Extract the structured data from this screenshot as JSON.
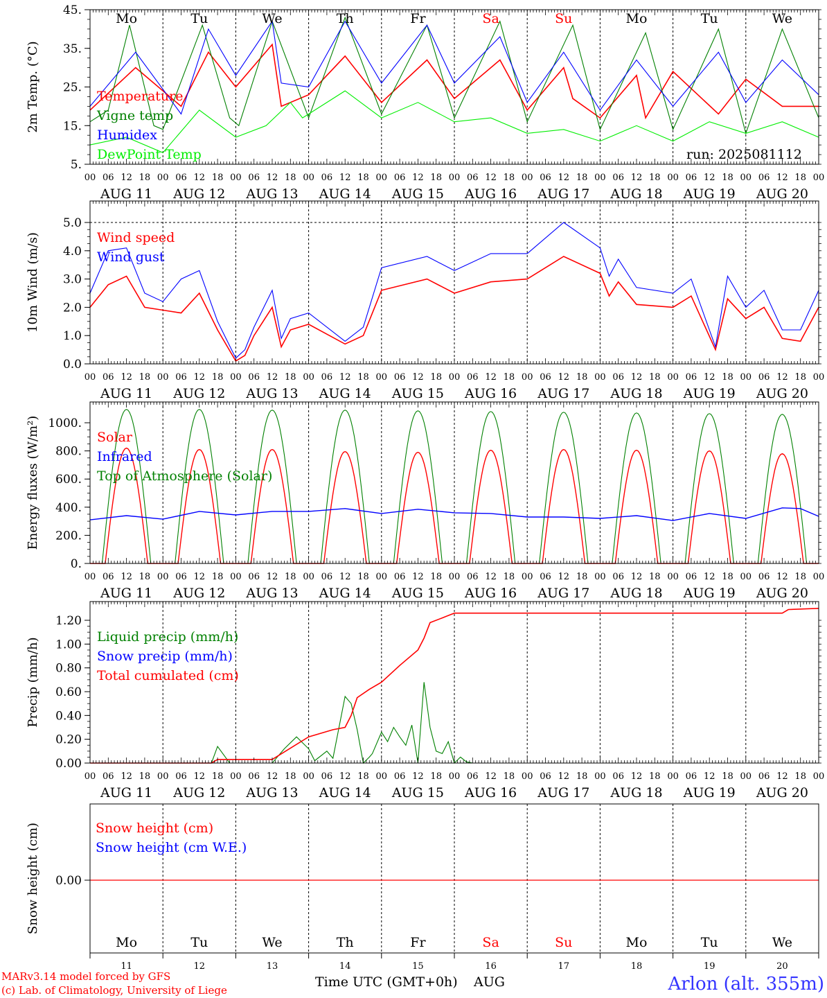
{
  "days": {
    "names": [
      "Mo",
      "Tu",
      "We",
      "Th",
      "Fr",
      "Sa",
      "Su",
      "Mo",
      "Tu",
      "We"
    ],
    "weekend_flags": [
      false,
      false,
      false,
      false,
      false,
      true,
      true,
      false,
      false,
      false
    ],
    "dates": [
      "AUG 11",
      "AUG 12",
      "AUG 13",
      "AUG 14",
      "AUG 15",
      "AUG 16",
      "AUG 17",
      "AUG 18",
      "AUG 19",
      "AUG 20"
    ],
    "day_numbers": [
      "11",
      "12",
      "13",
      "14",
      "15",
      "16",
      "17",
      "18",
      "19",
      "20"
    ],
    "hour_labels": [
      "00",
      "06",
      "12",
      "18"
    ],
    "end_hour_label": "00"
  },
  "colors": {
    "red": "#ff0000",
    "green": "#008000",
    "blue": "#0000ff",
    "lightgreen": "#00ee00",
    "black": "#000000",
    "title_blue": "#3333ff",
    "footer_red": "#ff0000"
  },
  "run_label": "run: 2025081112",
  "footer": {
    "model": "MARv3.14 model forced by GFS",
    "copyright": "(c) Lab. of Climatology, University of Liege",
    "time_axis": "Time UTC (GMT+0h)",
    "month": "AUG",
    "station": "Arlon (alt. 355m)"
  },
  "chart_data": [
    {
      "type": "line",
      "ylabel": "2m Temp. (°C)",
      "ylim": [
        5,
        45
      ],
      "yticks": [
        "5.",
        "15.",
        "25.",
        "35.",
        "45."
      ],
      "ytick_values": [
        5,
        15,
        25,
        35,
        45
      ],
      "x_unit": "hours since Aug 11 00 UTC",
      "series": [
        {
          "name": "Temperature",
          "color": "red",
          "x": [
            0,
            15,
            30,
            39,
            48,
            60,
            63,
            72,
            84,
            96,
            111,
            120,
            135,
            144,
            156,
            159,
            168,
            180,
            183,
            192,
            207,
            216,
            228,
            240
          ],
          "y": [
            19,
            30,
            20,
            34,
            25,
            36,
            20,
            23,
            33,
            21,
            32,
            22,
            32,
            19,
            30,
            22,
            17,
            28,
            17,
            29,
            18,
            27,
            20,
            20
          ]
        },
        {
          "name": "Vigne temp",
          "color": "green",
          "x": [
            0,
            6,
            13,
            21,
            24,
            37,
            46,
            49,
            60,
            72,
            84,
            96,
            111,
            120,
            135,
            144,
            159,
            168,
            183,
            192,
            207,
            216,
            228,
            240
          ],
          "y": [
            16,
            19,
            41,
            15,
            14,
            41,
            17,
            15,
            42,
            17,
            43,
            18,
            41,
            17,
            42,
            16,
            41,
            14,
            39,
            14,
            40,
            13,
            40,
            17
          ]
        },
        {
          "name": "Humidex",
          "color": "blue",
          "x": [
            0,
            15,
            30,
            39,
            48,
            60,
            63,
            72,
            84,
            96,
            111,
            120,
            135,
            144,
            156,
            168,
            180,
            192,
            207,
            216,
            228,
            240
          ],
          "y": [
            20,
            34,
            18,
            40,
            28,
            42,
            26,
            25,
            42,
            26,
            41,
            26,
            38,
            21,
            34,
            19,
            32,
            20,
            34,
            21,
            32,
            23
          ]
        },
        {
          "name": "DewPoint Temp",
          "color": "lightgreen",
          "x": [
            0,
            12,
            24,
            36,
            48,
            58,
            66,
            70,
            84,
            96,
            108,
            120,
            132,
            144,
            156,
            168,
            180,
            192,
            204,
            216,
            228,
            240
          ],
          "y": [
            10,
            12,
            8,
            19,
            12,
            15,
            21,
            17,
            24,
            17,
            21,
            16,
            17,
            13,
            14,
            11,
            15,
            11,
            16,
            13,
            16,
            12
          ]
        }
      ]
    },
    {
      "type": "line",
      "ylabel": "10m Wind (m/s)",
      "ylim": [
        0,
        5.2
      ],
      "yticks": [
        "0.0",
        "1.0",
        "2.0",
        "3.0",
        "4.0",
        "5.0"
      ],
      "ytick_values": [
        0,
        1,
        2,
        3,
        4,
        5
      ],
      "x_unit": "hours since Aug 11 00 UTC",
      "series": [
        {
          "name": "Wind speed",
          "color": "red",
          "x": [
            0,
            6,
            12,
            18,
            24,
            30,
            36,
            42,
            48,
            51,
            54,
            60,
            63,
            66,
            72,
            84,
            90,
            96,
            111,
            120,
            132,
            144,
            156,
            168,
            171,
            174,
            180,
            192,
            198,
            206,
            210,
            216,
            222,
            228,
            234,
            240
          ],
          "y": [
            2.0,
            2.8,
            3.1,
            2.0,
            1.9,
            1.8,
            2.5,
            1.2,
            0.1,
            0.3,
            1.0,
            2.0,
            0.6,
            1.2,
            1.4,
            0.7,
            1.0,
            2.6,
            3.0,
            2.5,
            2.9,
            3.0,
            3.8,
            3.2,
            2.4,
            2.9,
            2.1,
            2.0,
            2.4,
            0.5,
            2.3,
            1.6,
            2.0,
            0.9,
            0.8,
            2.0
          ]
        },
        {
          "name": "Wind gust",
          "color": "blue",
          "x": [
            0,
            6,
            12,
            18,
            24,
            30,
            36,
            42,
            48,
            51,
            54,
            60,
            63,
            66,
            72,
            84,
            90,
            96,
            111,
            120,
            132,
            144,
            156,
            168,
            171,
            174,
            180,
            192,
            198,
            206,
            210,
            216,
            222,
            228,
            234,
            240
          ],
          "y": [
            2.5,
            4.0,
            4.1,
            2.5,
            2.2,
            3.0,
            3.3,
            1.5,
            0.2,
            0.5,
            1.3,
            2.6,
            0.9,
            1.6,
            1.8,
            0.8,
            1.3,
            3.4,
            3.8,
            3.3,
            3.9,
            3.9,
            5.0,
            4.1,
            3.1,
            3.7,
            2.7,
            2.5,
            3.0,
            0.6,
            3.1,
            2.0,
            2.6,
            1.2,
            1.2,
            2.6
          ]
        }
      ]
    },
    {
      "type": "line",
      "ylabel": "Energy fluxes (W/m²)",
      "ylim": [
        0,
        1100
      ],
      "yticks": [
        "0.",
        "200.",
        "400.",
        "600.",
        "800.",
        "1000."
      ],
      "ytick_values": [
        0,
        200,
        400,
        600,
        800,
        1000
      ],
      "x_unit": "hours since Aug 11 00 UTC",
      "solar_peaks": [
        820,
        810,
        810,
        795,
        790,
        805,
        810,
        805,
        800,
        780
      ],
      "toa_peaks": [
        1095,
        1095,
        1090,
        1090,
        1085,
        1080,
        1075,
        1070,
        1065,
        1060
      ],
      "series": [
        {
          "name": "Solar",
          "color": "red"
        },
        {
          "name": "Infrared",
          "color": "blue",
          "x": [
            0,
            12,
            24,
            36,
            48,
            60,
            72,
            84,
            96,
            108,
            120,
            132,
            144,
            156,
            168,
            180,
            192,
            204,
            216,
            228,
            234,
            240
          ],
          "y": [
            310,
            340,
            315,
            370,
            345,
            370,
            370,
            390,
            355,
            385,
            360,
            355,
            330,
            330,
            320,
            340,
            305,
            355,
            320,
            395,
            390,
            335
          ]
        },
        {
          "name": "Top of Atmosphere (Solar)",
          "color": "green"
        }
      ]
    },
    {
      "type": "line",
      "ylabel": "Precip (mm/h)",
      "ylim": [
        0,
        1.3
      ],
      "yticks": [
        "0.00",
        "0.20",
        "0.40",
        "0.60",
        "0.80",
        "1.00",
        "1.20"
      ],
      "ytick_values": [
        0,
        0.2,
        0.4,
        0.6,
        0.8,
        1.0,
        1.2
      ],
      "x_unit": "hours since Aug 11 00 UTC",
      "series": [
        {
          "name": "Liquid precip (mm/h)",
          "color": "green",
          "x": [
            0,
            40,
            42,
            46,
            60,
            64,
            68,
            72,
            74,
            78,
            80,
            84,
            86,
            88,
            90,
            92,
            93,
            96,
            98,
            100,
            102,
            104,
            106,
            108,
            110,
            112,
            114,
            116,
            118,
            120,
            122,
            124,
            126,
            240
          ],
          "y": [
            0,
            0,
            0.14,
            0,
            0,
            0.12,
            0.22,
            0.12,
            0.02,
            0.1,
            0.04,
            0.56,
            0.5,
            0.28,
            0,
            0.05,
            0.08,
            0.26,
            0.18,
            0.3,
            0.22,
            0.15,
            0.32,
            0,
            0.68,
            0.3,
            0.1,
            0.08,
            0.18,
            0,
            0.05,
            0.01,
            0,
            0
          ]
        },
        {
          "name": "Snow precip (mm/h)",
          "color": "blue",
          "x": [
            0,
            240
          ],
          "y": [
            0,
            0
          ]
        },
        {
          "name": "Total cumulated (cm)",
          "color": "red",
          "x": [
            0,
            40,
            42,
            60,
            72,
            80,
            84,
            86,
            88,
            92,
            96,
            102,
            108,
            110,
            112,
            116,
            118,
            120,
            228,
            230,
            240
          ],
          "y": [
            0,
            0,
            0.03,
            0.03,
            0.22,
            0.28,
            0.3,
            0.4,
            0.55,
            0.62,
            0.68,
            0.82,
            0.95,
            1.05,
            1.18,
            1.22,
            1.24,
            1.26,
            1.26,
            1.29,
            1.3
          ]
        }
      ]
    },
    {
      "type": "line",
      "ylabel": "Snow height (cm)",
      "yticks": [
        "0.00"
      ],
      "ytick_values": [
        0
      ],
      "x_unit": "hours since Aug 11 00 UTC",
      "series": [
        {
          "name": "Snow height (cm)",
          "color": "red",
          "x": [
            0,
            240
          ],
          "y": [
            0,
            0
          ]
        },
        {
          "name": "Snow height (cm W.E.)",
          "color": "blue"
        }
      ]
    }
  ]
}
